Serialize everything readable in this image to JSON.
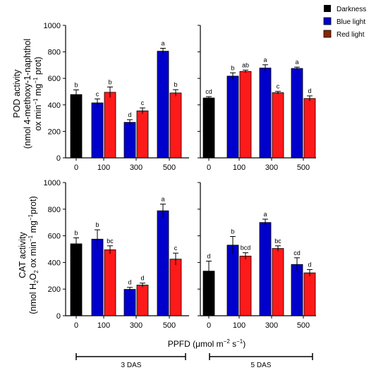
{
  "legend": [
    {
      "label": "Darkness",
      "color": "#000000"
    },
    {
      "label": "Blue light",
      "color": "#0000cc"
    },
    {
      "label": "Red light",
      "color": "#ff1a1a"
    }
  ],
  "xlabel": {
    "main": "PPFD (μmol m",
    "sup1": "−2",
    "mid": " s",
    "sup2": "−1",
    "end": ")"
  },
  "groups": [
    "3 DAS",
    "5 DAS"
  ],
  "chart_data": [
    {
      "type": "bar",
      "id": "pod",
      "ylabel_line1": "POD activity",
      "ylabel_line2": "(nmol 4-methoxy-1-naphthol",
      "ylabel_line3": [
        "ox min",
        "−1",
        " mg",
        "−1",
        " prot)"
      ],
      "ylim": [
        0,
        1000
      ],
      "yticks": [
        0,
        200,
        400,
        600,
        800,
        1000
      ],
      "panels": [
        {
          "group": "3 DAS",
          "categories": [
            "0",
            "100",
            "300",
            "500"
          ],
          "series": [
            {
              "name": "Darkness",
              "values": [
                478,
                null,
                null,
                null
              ],
              "errors": [
                35,
                null,
                null,
                null
              ],
              "letters": [
                "b",
                null,
                null,
                null
              ]
            },
            {
              "name": "Blue light",
              "values": [
                null,
                415,
                268,
                805
              ],
              "errors": [
                null,
                30,
                20,
                22
              ],
              "letters": [
                null,
                "c",
                "d",
                "a"
              ]
            },
            {
              "name": "Red light",
              "values": [
                null,
                495,
                355,
                490
              ],
              "errors": [
                null,
                40,
                22,
                25
              ],
              "letters": [
                null,
                "b",
                "c",
                "b"
              ]
            }
          ]
        },
        {
          "group": "5 DAS",
          "categories": [
            "0",
            "100",
            "300",
            "500"
          ],
          "series": [
            {
              "name": "Darkness",
              "values": [
                452,
                null,
                null,
                null
              ],
              "errors": [
                10,
                null,
                null,
                null
              ],
              "letters": [
                "cd",
                null,
                null,
                null
              ]
            },
            {
              "name": "Blue light",
              "values": [
                null,
                617,
                678,
                675
              ],
              "errors": [
                null,
                25,
                25,
                10
              ],
              "letters": [
                null,
                "b",
                "a",
                "a"
              ]
            },
            {
              "name": "Red light",
              "values": [
                null,
                652,
                492,
                448
              ],
              "errors": [
                null,
                10,
                10,
                20
              ],
              "letters": [
                null,
                "ab",
                "c",
                "d"
              ]
            }
          ]
        }
      ]
    },
    {
      "type": "bar",
      "id": "cat",
      "ylabel_line1": "CAT activity",
      "ylabel_line2": [
        "(nmol H",
        "2",
        "O",
        "2",
        " ox min",
        "−1",
        " mg",
        "−1",
        "prot)"
      ],
      "ylim": [
        0,
        1000
      ],
      "yticks": [
        0,
        200,
        400,
        600,
        800,
        1000
      ],
      "panels": [
        {
          "group": "3 DAS",
          "categories": [
            "0",
            "100",
            "300",
            "500"
          ],
          "series": [
            {
              "name": "Darkness",
              "values": [
                540,
                null,
                null,
                null
              ],
              "errors": [
                45,
                null,
                null,
                null
              ],
              "letters": [
                "b",
                null,
                null,
                null
              ]
            },
            {
              "name": "Blue light",
              "values": [
                null,
                575,
                198,
                788
              ],
              "errors": [
                null,
                70,
                15,
                50
              ],
              "letters": [
                null,
                "b",
                "d",
                "a"
              ]
            },
            {
              "name": "Red light",
              "values": [
                null,
                495,
                230,
                425
              ],
              "errors": [
                null,
                30,
                15,
                45
              ],
              "letters": [
                null,
                "bc",
                "d",
                "c"
              ]
            }
          ]
        },
        {
          "group": "5 DAS",
          "categories": [
            "0",
            "100",
            "300",
            "500"
          ],
          "series": [
            {
              "name": "Darkness",
              "values": [
                335,
                null,
                null,
                null
              ],
              "errors": [
                null,
                null,
                null,
                null
              ],
              "errors_up": [
                75,
                null,
                null,
                null
              ],
              "letters": [
                "d",
                null,
                null,
                null
              ]
            },
            {
              "name": "Blue light",
              "values": [
                null,
                530,
                700,
                385
              ],
              "errors": [
                null,
                65,
                25,
                50
              ],
              "letters": [
                null,
                "b",
                "a",
                "cd"
              ]
            },
            {
              "name": "Red light",
              "values": [
                null,
                448,
                505,
                322
              ],
              "errors": [
                null,
                25,
                20,
                25
              ],
              "letters": [
                null,
                "bcd",
                "bc",
                "d"
              ]
            }
          ]
        }
      ]
    }
  ]
}
